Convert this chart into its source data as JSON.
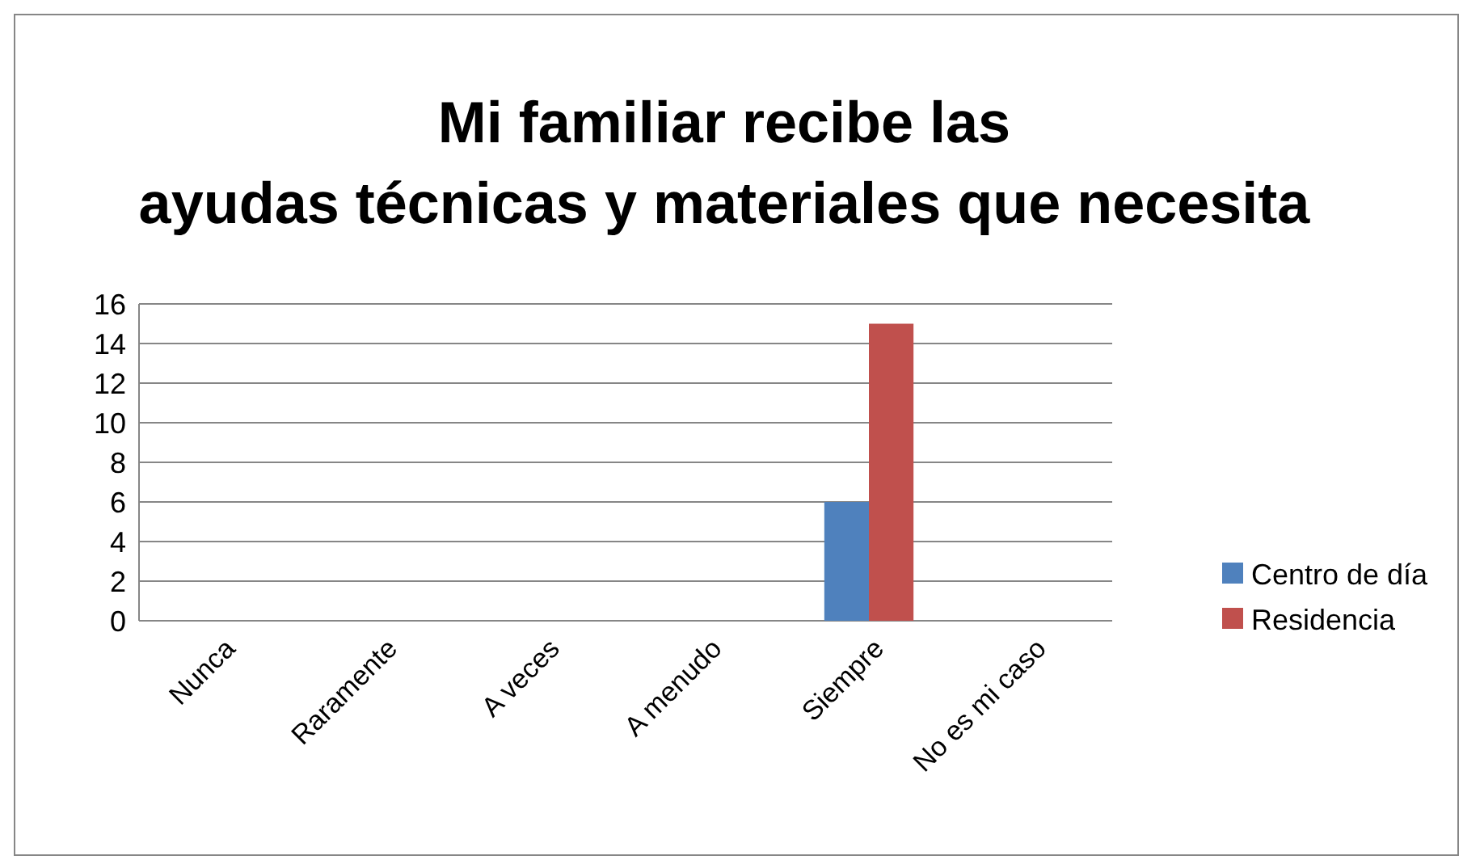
{
  "chart_data": {
    "type": "bar",
    "title": "Mi familiar recibe las ayudas técnicas y materiales que necesita",
    "categories": [
      "Nunca",
      "Raramente",
      "A veces",
      "A menudo",
      "Siempre",
      "No es mi caso"
    ],
    "series": [
      {
        "name": "Centro de día",
        "color": "#4f81bd",
        "values": [
          0,
          0,
          0,
          0,
          6,
          0
        ]
      },
      {
        "name": "Residencia",
        "color": "#c0504d",
        "values": [
          0,
          0,
          0,
          0,
          15,
          0
        ]
      }
    ],
    "ylim": [
      0,
      16
    ],
    "yticks": [
      0,
      2,
      4,
      6,
      8,
      10,
      12,
      14,
      16
    ],
    "grid": "y",
    "legend": "right"
  }
}
